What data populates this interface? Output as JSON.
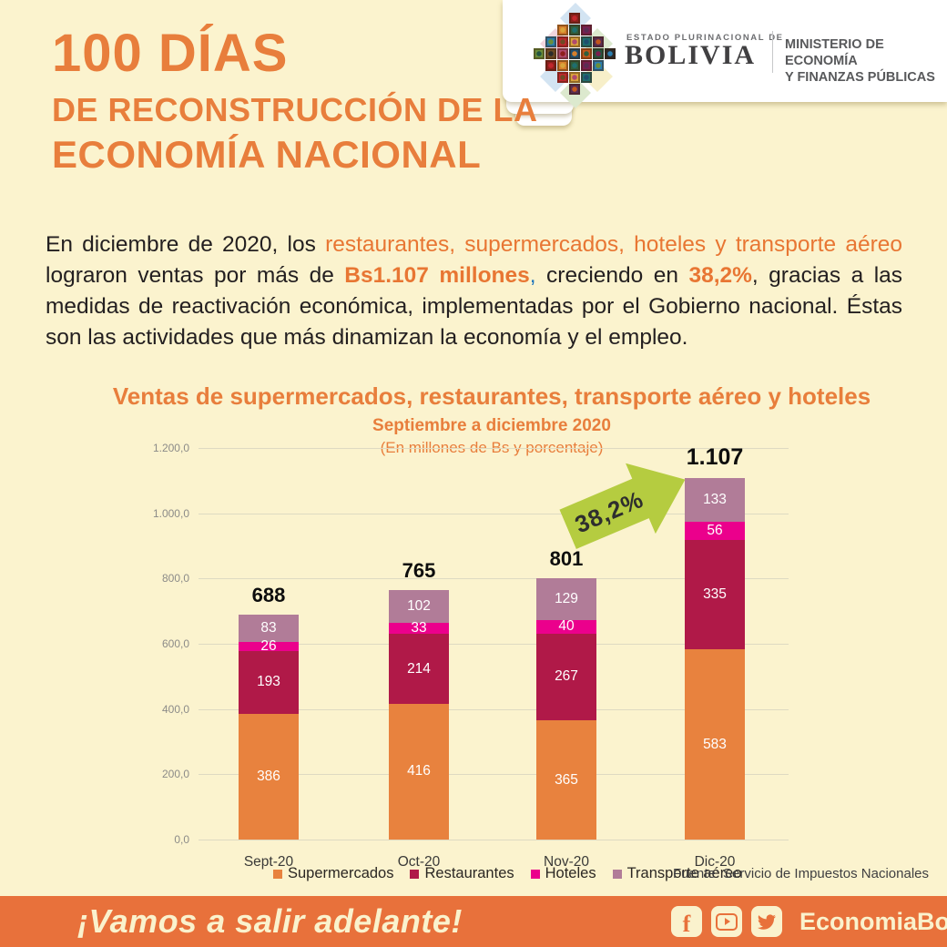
{
  "theme": {
    "background_cream": "#FBF3CE",
    "accent_orange": "#E87E3C",
    "footer_orange": "#E8713B",
    "highlight_blue": "#1F76BC",
    "arrow_green": "#B5CC40"
  },
  "header": {
    "title_line1": "100 DÍAS",
    "title_line2": "DE RECONSTRUCCIÓN DE LA",
    "title_line3": "ECONOMÍA NACIONAL",
    "logo": {
      "pretitle": "ESTADO PLURINACIONAL DE",
      "country": "BOLIVIA",
      "ministry_line1": "MINISTERIO DE ECONOMÍA",
      "ministry_line2": "Y FINANZAS PÚBLICAS"
    }
  },
  "intro": {
    "t1": "En diciembre de 2020, los ",
    "h1": "restaurantes, supermercados, hoteles y transporte aéreo",
    "t2": " lograron ventas por más de ",
    "h2": "Bs1.107 millones",
    "c1": ",",
    "t3": " creciendo en ",
    "h3": "38,2%",
    "t4": ", gracias a las medidas de reactivación económica, implementadas por el Gobierno nacional. Éstas son las actividades que más dinamizan la economía y el empleo."
  },
  "chart_data": {
    "type": "bar",
    "stacked": true,
    "title": "Ventas de supermercados, restaurantes, transporte aéreo y hoteles",
    "subtitle": "Septiembre a diciembre 2020",
    "unit_note": "(En millones de Bs y porcentaje)",
    "categories": [
      "Sept-20",
      "Oct-20",
      "Nov-20",
      "Dic-20"
    ],
    "series": [
      {
        "name": "Supermercados",
        "color": "#E8823E",
        "values": [
          386,
          416,
          365,
          583
        ]
      },
      {
        "name": "Restaurantes",
        "color": "#B01948",
        "values": [
          193,
          214,
          267,
          335
        ]
      },
      {
        "name": "Hoteles",
        "color": "#EB008C",
        "values": [
          26,
          33,
          40,
          56
        ]
      },
      {
        "name": "Transporte aéreo",
        "color": "#B17C98",
        "values": [
          83,
          102,
          129,
          133
        ]
      }
    ],
    "totals": [
      "688",
      "765",
      "801",
      "1.107"
    ],
    "growth_label": "38,2%",
    "ylim": [
      0,
      1200
    ],
    "y_ticks": [
      "1.200,0",
      "1.000,0",
      "800,0",
      "600,0",
      "400,0",
      "200,0",
      "0,0"
    ],
    "grid": true,
    "legend_position": "bottom",
    "source": "Fuente: Servicio de Impuestos Nacionales"
  },
  "footer": {
    "slogan": "¡Vamos a salir adelante!",
    "handle": "EconomiaBo",
    "icons": [
      "facebook-icon",
      "youtube-icon",
      "twitter-icon"
    ]
  }
}
